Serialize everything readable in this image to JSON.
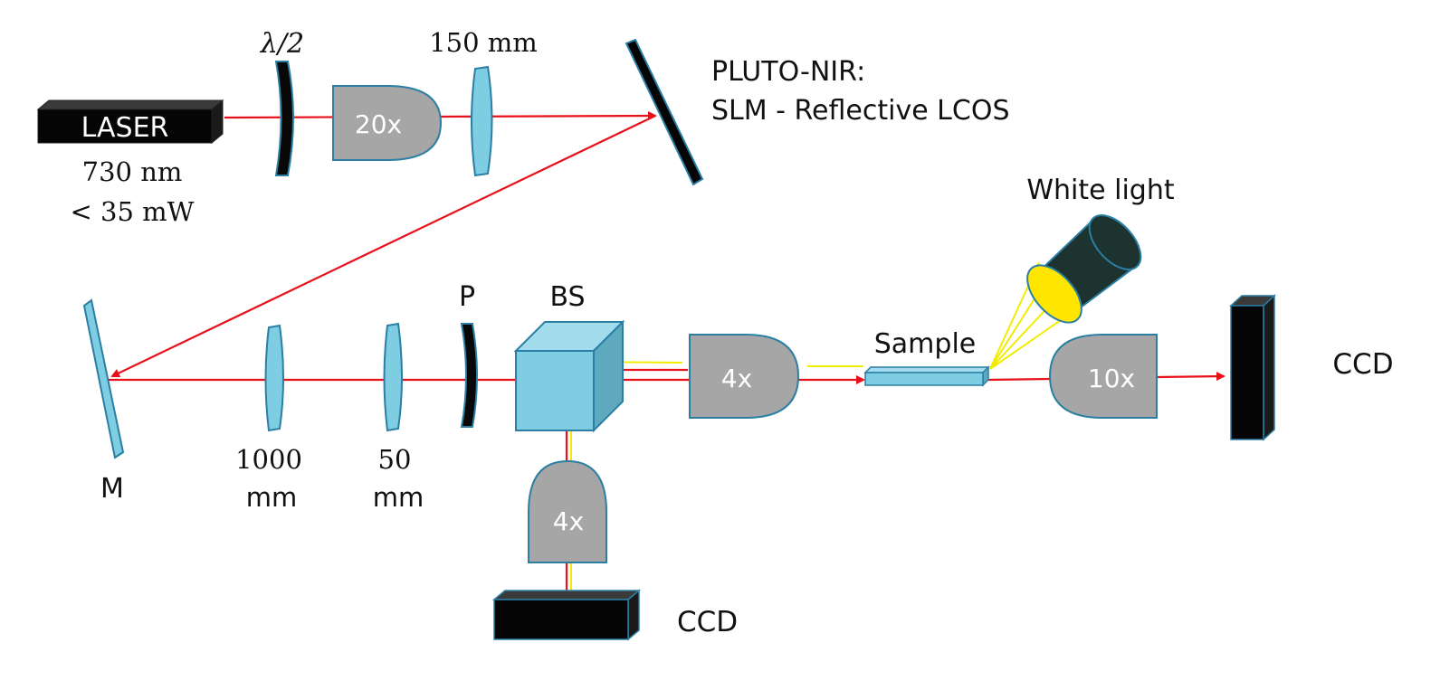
{
  "labels": {
    "laser": "LASER",
    "laser_wavelength": "730 nm",
    "laser_power": "< 35 mW",
    "half_wave": "λ/2",
    "lens_150": "150 mm",
    "objective_20x": "20x",
    "slm_line1": "PLUTO-NIR:",
    "slm_line2": "SLM - Reflective LCOS",
    "white_light": "White light",
    "mirror": "M",
    "lens_1000_line1": "1000",
    "lens_1000_line2": "mm",
    "lens_50_line1": "50",
    "lens_50_line2": "mm",
    "polarizer": "P",
    "beamsplitter": "BS",
    "objective_4x_right": "4x",
    "objective_4x_down": "4x",
    "sample": "Sample",
    "objective_10x": "10x",
    "ccd_right": "CCD",
    "ccd_bottom": "CCD"
  },
  "colors": {
    "laser_beam": "#e8101a",
    "white_beam": "#f2ec00",
    "optic_blue": "#7ecde3",
    "optic_blue_edge": "#2a7fa3",
    "objective_gray": "#a6a6a6",
    "block_black": "#050505",
    "lamp_dark": "#1d3330",
    "lamp_yellow": "#ffe600"
  }
}
